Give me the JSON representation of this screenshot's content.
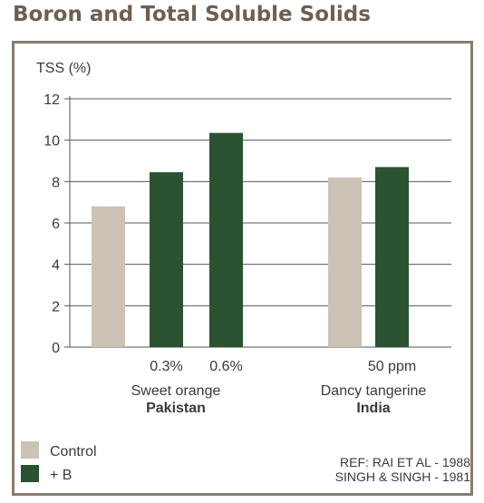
{
  "page_title": "Boron and Total Soluble Solids",
  "colors": {
    "control": "#cdc2b6",
    "boron": "#2b5231",
    "frame": "#8a7c70",
    "title": "#6e5f52",
    "grid": "#555555"
  },
  "chart_data": {
    "type": "bar",
    "title": "Boron and Total Soluble Solids",
    "ylabel": "TSS (%)",
    "ylim": [
      0,
      12
    ],
    "yticks": [
      "0",
      "2",
      "4",
      "6",
      "8",
      "10",
      "12"
    ],
    "grid": true,
    "legend_position": "bottom-left",
    "legend": [
      "Control",
      "+ B"
    ],
    "groups": [
      {
        "crop": "Sweet orange",
        "country": "Pakistan",
        "bars": [
          {
            "series": "Control",
            "value": 6.8,
            "label": ""
          },
          {
            "series": "+ B",
            "value": 8.45,
            "label": "0.3%"
          },
          {
            "series": "+ B",
            "value": 10.35,
            "label": "0.6%"
          }
        ]
      },
      {
        "crop": "Dancy tangerine",
        "country": "India",
        "bars": [
          {
            "series": "Control",
            "value": 8.2,
            "label": ""
          },
          {
            "series": "+ B",
            "value": 8.7,
            "label": "50 ppm"
          }
        ]
      }
    ],
    "references": [
      "REF: RAI ET AL - 1988",
      "SINGH & SINGH - 1981"
    ]
  }
}
